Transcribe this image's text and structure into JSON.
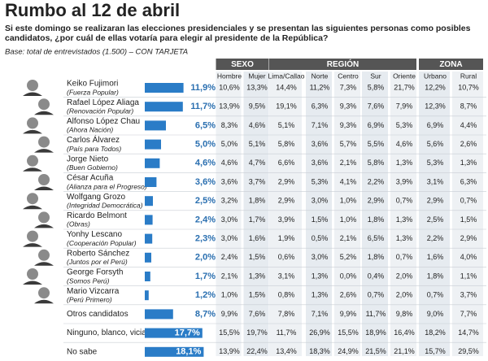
{
  "header": {
    "title": "Rumbo al 12 de abril",
    "question": "Si este domingo se realizaran las elecciones presidenciales y se presentan las siguientes personas como posibles candidatos, ¿por cuál de ellas votaría para elegir al presidente de la República?",
    "base": "Base: total de entrevistados (1.500) – CON TARJETA"
  },
  "table": {
    "groups": [
      {
        "label": "SEXO",
        "columns": [
          "Hombre",
          "Mujer"
        ]
      },
      {
        "label": "REGIÓN",
        "columns": [
          "Lima/Callao",
          "Norte",
          "Centro",
          "Sur",
          "Oriente"
        ]
      },
      {
        "label": "ZONA",
        "columns": [
          "Urbano",
          "Rural"
        ]
      }
    ],
    "rows": [
      {
        "name": "Keiko Fujimori",
        "party": "(Fuerza Popular)",
        "total": 11.9,
        "total_label": "11,9%",
        "cells": [
          "10,6%",
          "13,3%",
          "14,4%",
          "11,2%",
          "7,3%",
          "5,8%",
          "21,7%",
          "12,2%",
          "10,7%"
        ]
      },
      {
        "name": "Rafael López Aliaga",
        "party": "(Renovación Popular)",
        "total": 11.7,
        "total_label": "11,7%",
        "cells": [
          "13,9%",
          "9,5%",
          "19,1%",
          "6,3%",
          "9,3%",
          "7,6%",
          "7,9%",
          "12,3%",
          "8,7%"
        ]
      },
      {
        "name": "Alfonso López Chau",
        "party": "(Ahora Nación)",
        "total": 6.5,
        "total_label": "6,5%",
        "cells": [
          "8,3%",
          "4,6%",
          "5,1%",
          "7,1%",
          "9,3%",
          "6,9%",
          "5,3%",
          "6,9%",
          "4,4%"
        ]
      },
      {
        "name": "Carlos Álvarez",
        "party": "(País para Todos)",
        "total": 5.0,
        "total_label": "5,0%",
        "cells": [
          "5,0%",
          "5,1%",
          "5,8%",
          "3,6%",
          "5,7%",
          "5,5%",
          "4,6%",
          "5,6%",
          "2,6%"
        ]
      },
      {
        "name": "Jorge Nieto",
        "party": "(Buen Gobierno)",
        "total": 4.6,
        "total_label": "4,6%",
        "cells": [
          "4,6%",
          "4,7%",
          "6,6%",
          "3,6%",
          "2,1%",
          "5,8%",
          "1,3%",
          "5,3%",
          "1,3%"
        ]
      },
      {
        "name": "César Acuña",
        "party": "(Alianza para el Progreso)",
        "total": 3.6,
        "total_label": "3,6%",
        "cells": [
          "3,6%",
          "3,7%",
          "2,9%",
          "5,3%",
          "4,1%",
          "2,2%",
          "3,9%",
          "3,1%",
          "6,3%"
        ]
      },
      {
        "name": "Wolfgang Grozo",
        "party": "(Integridad Democrática)",
        "total": 2.5,
        "total_label": "2,5%",
        "cells": [
          "3,2%",
          "1,8%",
          "2,9%",
          "3,0%",
          "1,0%",
          "2,9%",
          "0,7%",
          "2,9%",
          "0,7%"
        ]
      },
      {
        "name": "Ricardo Belmont",
        "party": "(Obras)",
        "total": 2.4,
        "total_label": "2,4%",
        "cells": [
          "3,0%",
          "1,7%",
          "3,9%",
          "1,5%",
          "1,0%",
          "1,8%",
          "1,3%",
          "2,5%",
          "1,5%"
        ]
      },
      {
        "name": "Yonhy Lescano",
        "party": "(Cooperación Popular)",
        "total": 2.3,
        "total_label": "2,3%",
        "cells": [
          "3,0%",
          "1,6%",
          "1,9%",
          "0,5%",
          "2,1%",
          "6,5%",
          "1,3%",
          "2,2%",
          "2,9%"
        ]
      },
      {
        "name": "Roberto Sánchez",
        "party": "(Juntos por el Perú)",
        "total": 2.0,
        "total_label": "2,0%",
        "cells": [
          "2,4%",
          "1,5%",
          "0,6%",
          "3,0%",
          "5,2%",
          "1,8%",
          "0,7%",
          "1,6%",
          "4,0%"
        ]
      },
      {
        "name": "George Forsyth",
        "party": "(Somos Perú)",
        "total": 1.7,
        "total_label": "1,7%",
        "cells": [
          "2,1%",
          "1,3%",
          "3,1%",
          "1,3%",
          "0,0%",
          "0,4%",
          "2,0%",
          "1,8%",
          "1,1%"
        ]
      },
      {
        "name": "Mario Vizcarra",
        "party": "(Perú Primero)",
        "total": 1.2,
        "total_label": "1,2%",
        "cells": [
          "1,0%",
          "1,5%",
          "0,8%",
          "1,3%",
          "2,6%",
          "0,7%",
          "2,0%",
          "0,7%",
          "3,7%"
        ]
      },
      {
        "name": "Otros candidatos",
        "total": 8.7,
        "total_label": "8,7%",
        "cells": [
          "9,9%",
          "7,6%",
          "7,8%",
          "7,1%",
          "9,9%",
          "11,7%",
          "9,8%",
          "9,0%",
          "7,7%"
        ]
      },
      {
        "name": "Ninguno, blanco, viciado",
        "total": 17.7,
        "total_label": "17,7%",
        "cells": [
          "15,5%",
          "19,7%",
          "11,7%",
          "26,9%",
          "15,5%",
          "18,9%",
          "16,4%",
          "18,2%",
          "14,7%"
        ]
      },
      {
        "name": "No sabe",
        "total": 18.1,
        "total_label": "18,1%",
        "cells": [
          "13,9%",
          "22,4%",
          "13,4%",
          "18,3%",
          "24,9%",
          "21,5%",
          "21,1%",
          "15,7%",
          "29,5%"
        ]
      }
    ]
  }
}
